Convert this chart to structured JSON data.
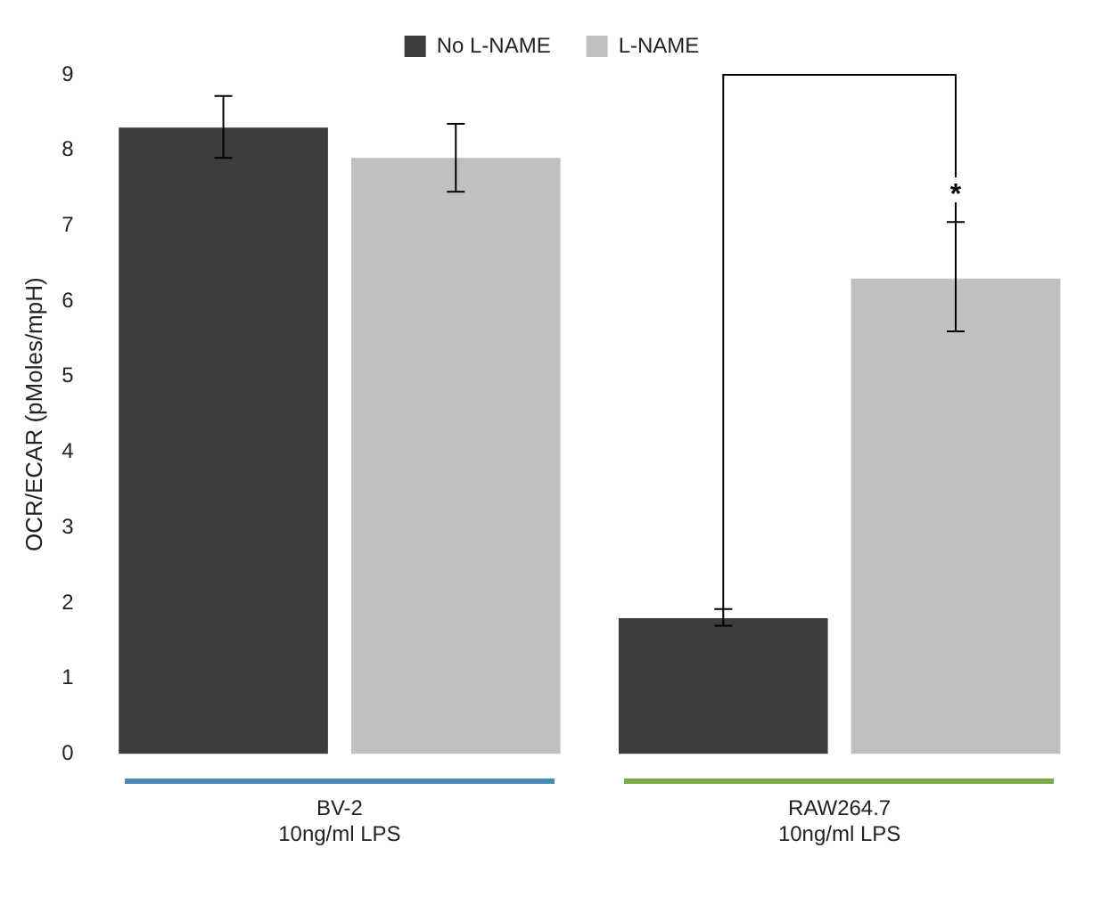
{
  "chart_data": {
    "type": "bar",
    "ylabel": "OCR/ECAR (pMoles/mpH)",
    "categories": [
      "BV-2\n10ng/ml LPS",
      "RAW264.7\n10ng/ml LPS"
    ],
    "series": [
      {
        "name": "No L-NAME",
        "color": "#3d3d3d",
        "values": [
          8.3,
          1.8
        ],
        "errors": [
          [
            7.9,
            8.72
          ],
          [
            1.7,
            1.92
          ]
        ]
      },
      {
        "name": "L-NAME",
        "color": "#c0c0c0",
        "values": [
          7.9,
          6.3
        ],
        "errors": [
          [
            7.45,
            8.35
          ],
          [
            5.6,
            7.05
          ]
        ]
      }
    ],
    "ylim": [
      0,
      9
    ],
    "yticks": [
      0,
      1,
      2,
      3,
      4,
      5,
      6,
      7,
      8,
      9
    ],
    "grid": false,
    "legend": "top",
    "annotations": [
      "*"
    ]
  }
}
